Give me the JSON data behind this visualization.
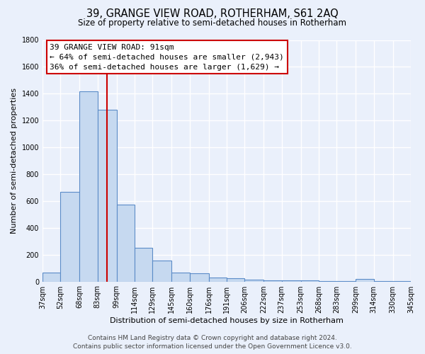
{
  "title": "39, GRANGE VIEW ROAD, ROTHERHAM, S61 2AQ",
  "subtitle": "Size of property relative to semi-detached houses in Rotherham",
  "xlabel": "Distribution of semi-detached houses by size in Rotherham",
  "ylabel": "Number of semi-detached properties",
  "bins": [
    37,
    52,
    68,
    83,
    99,
    114,
    129,
    145,
    160,
    176,
    191,
    206,
    222,
    237,
    253,
    268,
    283,
    299,
    314,
    330,
    345
  ],
  "values": [
    65,
    670,
    1420,
    1280,
    575,
    250,
    155,
    65,
    60,
    30,
    25,
    15,
    10,
    8,
    10,
    5,
    3,
    20,
    2,
    1
  ],
  "bar_color": "#c6d9f0",
  "bar_edge_color": "#5b8cc8",
  "vline_x": 91,
  "vline_color": "#cc0000",
  "annotation_line1": "39 GRANGE VIEW ROAD: 91sqm",
  "annotation_line2": "← 64% of semi-detached houses are smaller (2,943)",
  "annotation_line3": "36% of semi-detached houses are larger (1,629) →",
  "annotation_box_color": "#ffffff",
  "annotation_box_edge": "#cc0000",
  "ylim": [
    0,
    1800
  ],
  "yticks": [
    0,
    200,
    400,
    600,
    800,
    1000,
    1200,
    1400,
    1600,
    1800
  ],
  "tick_labels": [
    "37sqm",
    "52sqm",
    "68sqm",
    "83sqm",
    "99sqm",
    "114sqm",
    "129sqm",
    "145sqm",
    "160sqm",
    "176sqm",
    "191sqm",
    "206sqm",
    "222sqm",
    "237sqm",
    "253sqm",
    "268sqm",
    "283sqm",
    "299sqm",
    "314sqm",
    "330sqm",
    "345sqm"
  ],
  "footer_line1": "Contains HM Land Registry data © Crown copyright and database right 2024.",
  "footer_line2": "Contains public sector information licensed under the Open Government Licence v3.0.",
  "bg_color": "#eaf0fb",
  "plot_bg_color": "#eaf0fb",
  "grid_color": "#ffffff",
  "title_fontsize": 10.5,
  "subtitle_fontsize": 8.5,
  "axis_label_fontsize": 8,
  "tick_fontsize": 7,
  "annotation_fontsize": 8,
  "footer_fontsize": 6.5
}
